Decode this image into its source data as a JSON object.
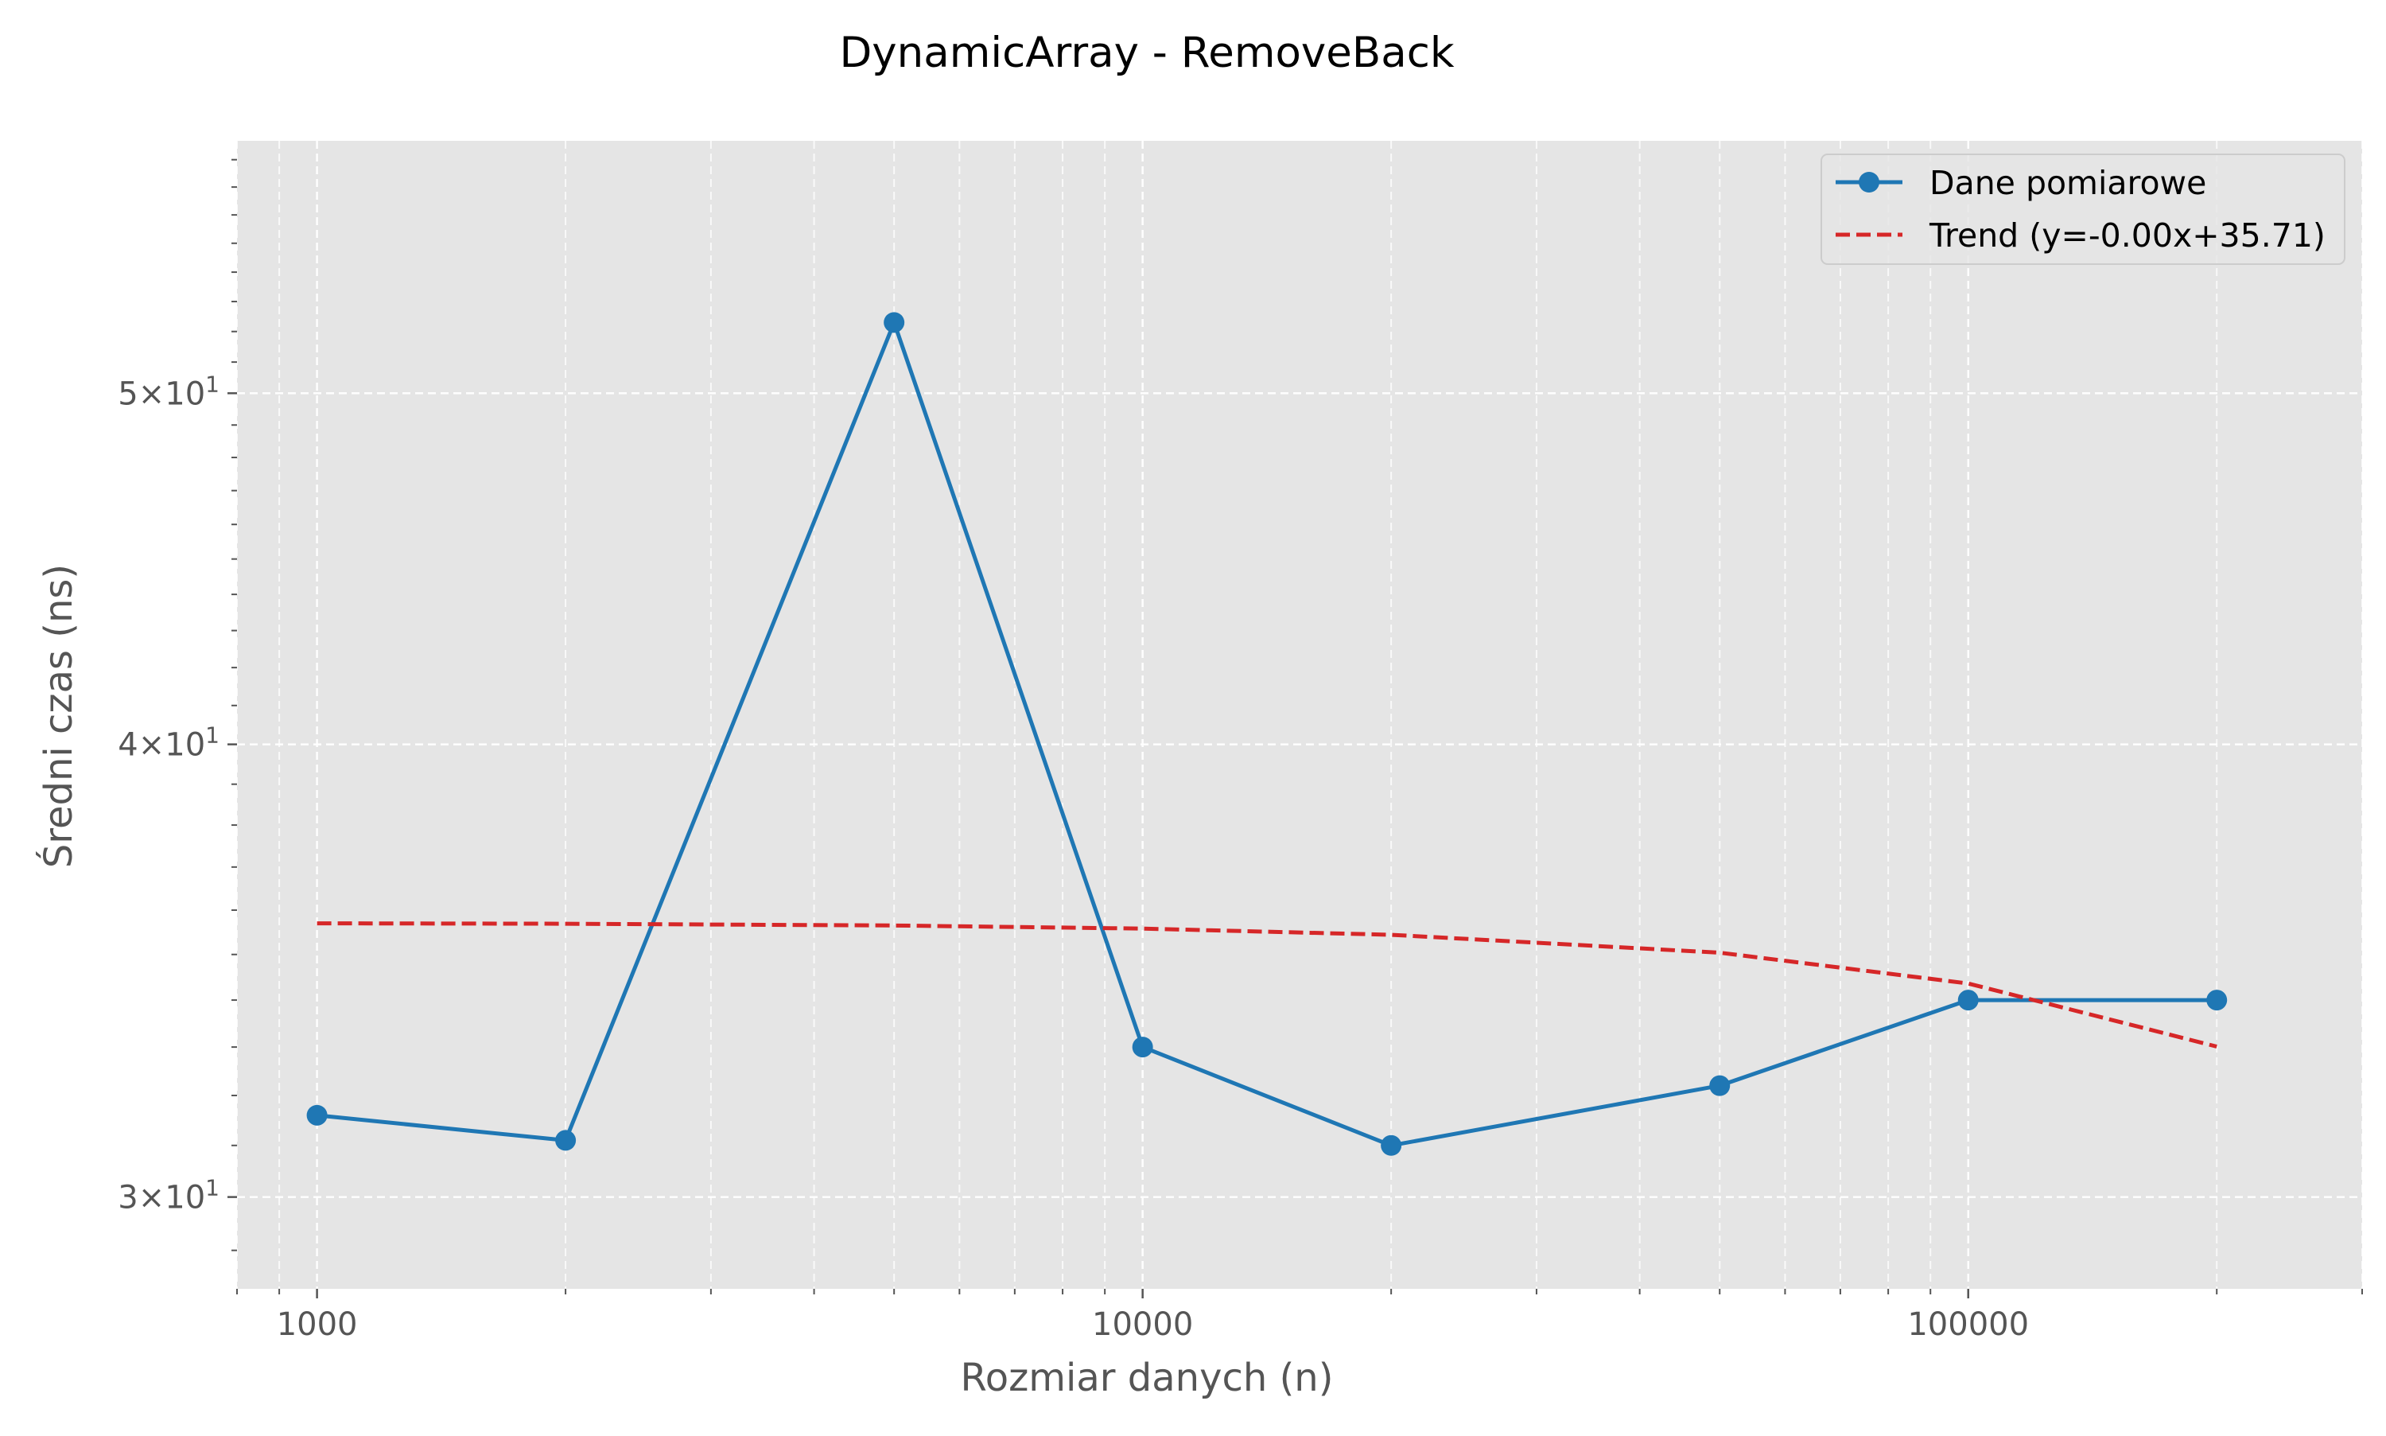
{
  "chart_data": {
    "type": "line",
    "title": "DynamicArray - RemoveBack",
    "xlabel": "Rozmiar danych (n)",
    "ylabel": "Średni czas (ns)",
    "x_scale": "log",
    "y_scale": "log",
    "xlim": [
      800,
      300000
    ],
    "ylim": [
      28.3,
      58.7
    ],
    "x_major_ticks": [
      {
        "value": 1000,
        "label": "1000"
      },
      {
        "value": 10000,
        "label": "10000"
      },
      {
        "value": 100000,
        "label": "100000"
      }
    ],
    "y_major_ticks": [
      {
        "value": 30,
        "mantissa": "3",
        "base": "10",
        "exp": "1"
      },
      {
        "value": 40,
        "mantissa": "4",
        "base": "10",
        "exp": "1"
      },
      {
        "value": 50,
        "mantissa": "5",
        "base": "10",
        "exp": "1"
      }
    ],
    "grid": true,
    "legend_position": "top-right",
    "series": [
      {
        "name": "Dane pomiarowe",
        "style": "solid-with-markers",
        "color": "#1f77b4",
        "x": [
          1000,
          2000,
          5000,
          10000,
          20000,
          50000,
          100000,
          200000
        ],
        "y": [
          31.6,
          31.1,
          52.3,
          33.0,
          31.0,
          32.2,
          34.0,
          34.0
        ]
      },
      {
        "name": "Trend (y=-0.00x+35.71)",
        "style": "dashed",
        "color": "#d62728",
        "x": [
          1000,
          2000,
          5000,
          10000,
          20000,
          50000,
          100000,
          200000
        ],
        "y": [
          35.7,
          35.69,
          35.65,
          35.58,
          35.44,
          35.04,
          34.36,
          33.01
        ]
      }
    ]
  },
  "colors": {
    "plot_background": "#e5e5e5",
    "grid": "#ffffff",
    "text": "#555555"
  }
}
